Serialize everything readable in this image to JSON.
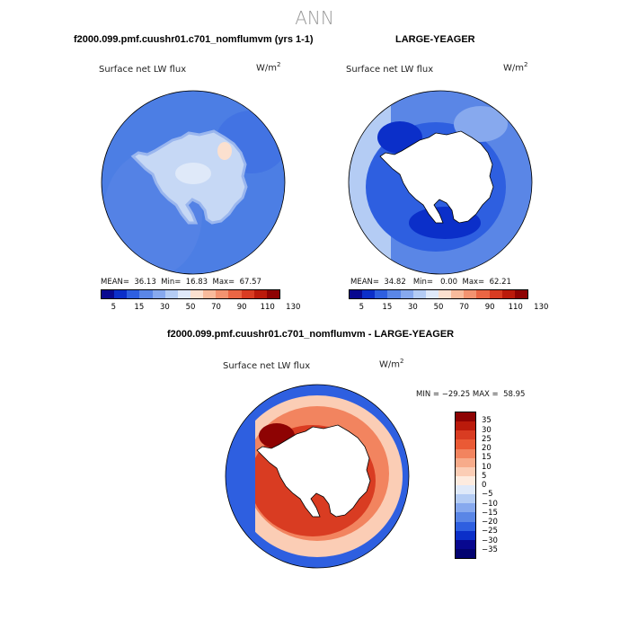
{
  "page": {
    "title": "ANN"
  },
  "chart_data": [
    {
      "type": "heatmap",
      "projection": "south-polar-stereographic",
      "title": "f2000.099.pmf.cuushr01.c701_nomflumvm (yrs 1-1)",
      "variable": "Surface net LW flux",
      "units_base": "W/m",
      "units_exp": "2",
      "stats_text": "MEAN=  36.13  Min=  16.83  Max=  67.57",
      "mean": 36.13,
      "min": 16.83,
      "max": 67.57,
      "levels": [
        "5",
        "15",
        "30",
        "50",
        "70",
        "90",
        "110",
        "130"
      ],
      "colors": [
        "#08088f",
        "#0b2fc9",
        "#2e5fe0",
        "#5a86e6",
        "#87a9ee",
        "#b4ccf4",
        "#dfe9f9",
        "#fbe0cf",
        "#f8bb9c",
        "#f39370",
        "#ea6644",
        "#d93c22",
        "#bb1a0b",
        "#8e0303"
      ],
      "ocean_color": "#4c7ee4",
      "interior_color": "#c6d8f5"
    },
    {
      "type": "heatmap",
      "projection": "south-polar-stereographic",
      "title": "LARGE-YEAGER",
      "variable": "Surface net LW flux",
      "units_base": "W/m",
      "units_exp": "2",
      "stats_text": "MEAN=  34.82   Min=   0.00  Max=  62.21",
      "mean": 34.82,
      "min": 0.0,
      "max": 62.21,
      "levels": [
        "5",
        "15",
        "30",
        "50",
        "70",
        "90",
        "110",
        "130"
      ],
      "colors": [
        "#08088f",
        "#0b2fc9",
        "#2e5fe0",
        "#5a86e6",
        "#87a9ee",
        "#b4ccf4",
        "#dfe9f9",
        "#fbe0cf",
        "#f8bb9c",
        "#f39370",
        "#ea6644",
        "#d93c22",
        "#bb1a0b",
        "#8e0303"
      ],
      "ocean_color": "#5a86e6",
      "interior_color": "#ffffff"
    },
    {
      "type": "heatmap",
      "projection": "south-polar-stereographic",
      "title": "f2000.099.pmf.cuushr01.c701_nomflumvm - LARGE-YEAGER",
      "variable": "Surface net LW flux",
      "units_base": "W/m",
      "units_exp": "2",
      "stats_text": "MIN = −29.25 MAX =  58.95",
      "min": -29.25,
      "max": 58.95,
      "levels": [
        "35",
        "30",
        "25",
        "20",
        "15",
        "10",
        "5",
        "0",
        "−5",
        "−10",
        "−15",
        "−20",
        "−25",
        "−30",
        "−35"
      ],
      "colors": [
        "#8e0303",
        "#bb1a0b",
        "#d93c22",
        "#ea5a35",
        "#f2845f",
        "#f7ab8a",
        "#fbcdb5",
        "#fdebdf",
        "#dfe9f9",
        "#b4ccf4",
        "#87a9ee",
        "#5a86e6",
        "#2e5fe0",
        "#0b2fc9",
        "#08088f",
        "#030370"
      ],
      "ocean_color": "#2e5fe0",
      "interior_color": "#ffffff"
    }
  ]
}
